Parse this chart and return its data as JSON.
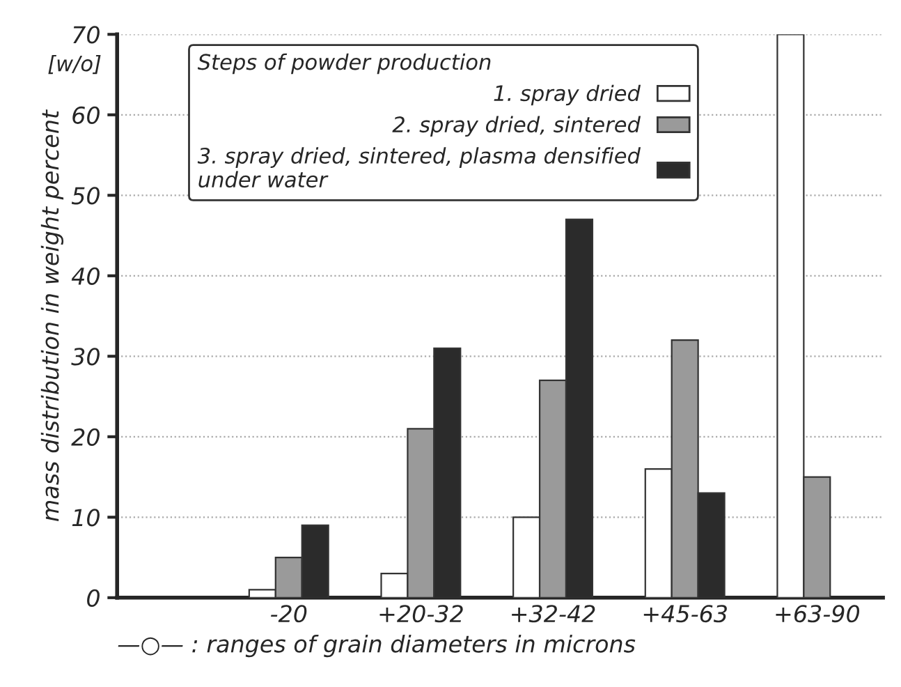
{
  "chart_data": {
    "type": "bar",
    "categories": [
      "-20",
      "+20-32",
      "+32-42",
      "+45-63",
      "+63-90"
    ],
    "series": [
      {
        "name": "1. spray dried",
        "color": "#ffffff",
        "values": [
          1,
          3,
          10,
          16,
          70
        ]
      },
      {
        "name": "2. spray dried, sintered",
        "color": "#9a9a9a",
        "values": [
          5,
          21,
          27,
          32,
          15
        ]
      },
      {
        "name": "3. spray dried, sintered, plasma densified\nunder water",
        "color": "#2b2b2b",
        "values": [
          9,
          31,
          47,
          13,
          null
        ]
      }
    ],
    "legend_title": "Steps of powder production",
    "ylabel": "mass distribution in weight percent",
    "xlabel": "—○— : ranges of grain diameters in microns",
    "annotations": [
      "[w/o]"
    ],
    "ylim": [
      0,
      70
    ],
    "yticks": [
      0,
      10,
      20,
      30,
      40,
      50,
      60,
      70
    ],
    "grid": "y",
    "legend": "top left"
  }
}
